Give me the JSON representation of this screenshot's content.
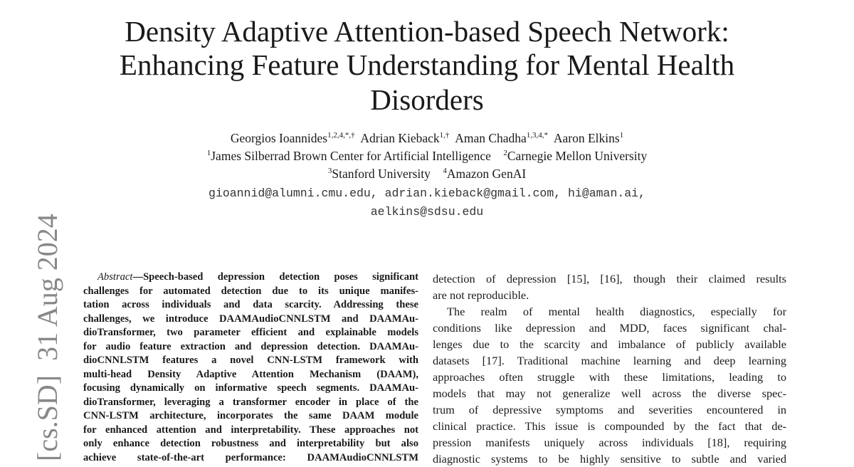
{
  "title_lines": [
    "Density Adaptive Attention-based Speech Network:",
    "Enhancing Feature Understanding for Mental Health",
    "Disorders"
  ],
  "authors": [
    {
      "name": "Georgios Ioannides",
      "sup": "1,2,4,*,†"
    },
    {
      "name": "Adrian Kieback",
      "sup": "1,†"
    },
    {
      "name": "Aman Chadha",
      "sup": "1,3,4,*"
    },
    {
      "name": "Aaron Elkins",
      "sup": "1"
    }
  ],
  "affiliations": [
    {
      "sup": "1",
      "name": "James Silberrad Brown Center for Artificial Intelligence"
    },
    {
      "sup": "2",
      "name": "Carnegie Mellon University"
    },
    {
      "sup": "3",
      "name": "Stanford University"
    },
    {
      "sup": "4",
      "name": "Amazon GenAI"
    }
  ],
  "emails": [
    "gioannid@alumni.cmu.edu, adrian.kieback@gmail.com, hi@aman.ai,",
    "aelkins@sdsu.edu"
  ],
  "arxiv_side": "[cs.SD]  31 Aug 2024",
  "abstract": {
    "label": "Abstract",
    "lines": [
      "—Speech-based depression detection poses significant",
      "challenges for automated detection due to its unique manifes-",
      "tation across individuals and data scarcity. Addressing these",
      "challenges, we introduce DAAMAudioCNNLSTM and DAAMAu-",
      "dioTransformer, two parameter efficient and explainable models",
      "for audio feature extraction and depression detection. DAAMAu-",
      "dioCNNLSTM features a novel CNN-LSTM framework with",
      "multi-head Density Adaptive Attention Mechanism (DAAM),",
      "focusing dynamically on informative speech segments. DAAMAu-",
      "dioTransformer, leveraging a transformer encoder in place of the",
      "CNN-LSTM architecture, incorporates the same DAAM module",
      "for enhanced attention and interpretability. These approaches not",
      "only enhance detection robustness and interpretability but also",
      "achieve state-of-the-art performance: DAAMAudioCNNLSTM"
    ]
  },
  "right_column": {
    "lines": [
      "detection of depression [15], [16], though their claimed results",
      "are not reproducible.",
      "The realm of mental health diagnostics, especially for",
      "conditions like depression and MDD, faces significant chal-",
      "lenges due to the scarcity and imbalance of publicly available",
      "datasets [17]. Traditional machine learning and deep learning",
      "approaches often struggle with these limitations, leading to",
      "models that may not generalize well across the diverse spec-",
      "trum of depressive symptoms and severities encountered in",
      "clinical practice. This issue is compounded by the fact that de-",
      "pression manifests uniquely across individuals [18], requiring",
      "diagnostic systems to be highly sensitive to subtle and varied"
    ]
  }
}
